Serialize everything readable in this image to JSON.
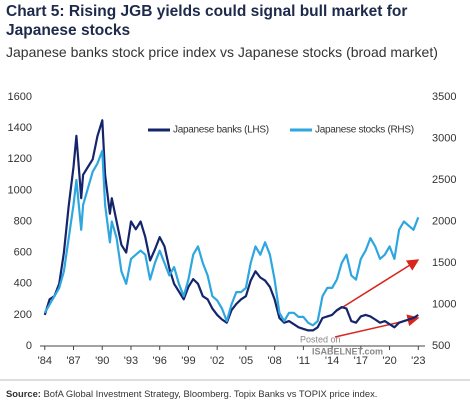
{
  "chart_data": {
    "type": "line",
    "title": "Chart 5: Rising JGB yields could signal bull market for Japanese stocks",
    "subtitle": "Japanese banks stock price index vs Japanese stocks (broad market)",
    "source_label": "Source:",
    "source": "BofA Global Investment Strategy, Bloomberg. Topix Banks vs TOPIX price index.",
    "watermark": [
      "Posted on",
      "ISABELNET.com"
    ],
    "x": [
      1984,
      1984.5,
      1985,
      1985.5,
      1986,
      1986.5,
      1987,
      1987.3,
      1987.8,
      1988,
      1988.5,
      1989,
      1989.5,
      1990,
      1990.3,
      1990.8,
      1991,
      1991.5,
      1992,
      1992.5,
      1993,
      1993.5,
      1994,
      1994.5,
      1995,
      1995.5,
      1996,
      1996.5,
      1997,
      1997.5,
      1998,
      1998.5,
      1999,
      1999.5,
      2000,
      2000.5,
      2001,
      2001.5,
      2002,
      2002.5,
      2003,
      2003.5,
      2004,
      2004.5,
      2005,
      2005.5,
      2006,
      2006.5,
      2007,
      2007.5,
      2008,
      2008.5,
      2009,
      2009.5,
      2010,
      2010.5,
      2011,
      2011.5,
      2012,
      2012.5,
      2013,
      2013.5,
      2014,
      2014.5,
      2015,
      2015.5,
      2016,
      2016.5,
      2017,
      2017.5,
      2018,
      2018.5,
      2019,
      2019.5,
      2020,
      2020.5,
      2021,
      2021.5,
      2022,
      2022.5,
      2023
    ],
    "series": [
      {
        "name": "Japanese banks (LHS)",
        "color": "#15256b",
        "axis": "y",
        "values": [
          200,
          300,
          320,
          400,
          600,
          900,
          1150,
          1350,
          950,
          1100,
          1150,
          1200,
          1350,
          1450,
          1100,
          850,
          950,
          800,
          650,
          600,
          800,
          750,
          800,
          700,
          550,
          620,
          700,
          640,
          500,
          400,
          350,
          300,
          380,
          430,
          400,
          320,
          300,
          240,
          200,
          170,
          150,
          230,
          270,
          300,
          320,
          420,
          480,
          440,
          420,
          380,
          300,
          180,
          150,
          160,
          140,
          120,
          110,
          100,
          100,
          120,
          180,
          190,
          200,
          230,
          250,
          240,
          160,
          150,
          190,
          200,
          190,
          170,
          150,
          160,
          140,
          120,
          150,
          160,
          170,
          180,
          200
        ]
      },
      {
        "name": "Japanese stocks (RHS)",
        "color": "#2ea6e0",
        "axis": "y2",
        "values": [
          900,
          1000,
          1100,
          1200,
          1400,
          1800,
          2200,
          2500,
          1900,
          2200,
          2400,
          2600,
          2700,
          2850,
          2200,
          1750,
          2000,
          1800,
          1400,
          1250,
          1550,
          1600,
          1650,
          1600,
          1300,
          1500,
          1650,
          1500,
          1350,
          1450,
          1250,
          1100,
          1300,
          1600,
          1700,
          1500,
          1350,
          1100,
          1050,
          950,
          800,
          1000,
          1150,
          1150,
          1200,
          1500,
          1700,
          1600,
          1750,
          1600,
          1300,
          900,
          800,
          900,
          900,
          850,
          850,
          780,
          750,
          800,
          1100,
          1200,
          1200,
          1300,
          1500,
          1600,
          1350,
          1300,
          1550,
          1650,
          1800,
          1700,
          1550,
          1600,
          1700,
          1550,
          1900,
          2000,
          1950,
          1900,
          2050
        ]
      }
    ],
    "xlim": [
      1983.5,
      2023.7
    ],
    "xticks": [
      {
        "value": 1984,
        "label": "'84"
      },
      {
        "value": 1987,
        "label": "'87"
      },
      {
        "value": 1990,
        "label": "'90"
      },
      {
        "value": 1993,
        "label": "'93"
      },
      {
        "value": 1996,
        "label": "'96"
      },
      {
        "value": 1999,
        "label": "'99"
      },
      {
        "value": 2002,
        "label": "'02"
      },
      {
        "value": 2005,
        "label": "'05"
      },
      {
        "value": 2008,
        "label": "'08"
      },
      {
        "value": 2011,
        "label": "'11"
      },
      {
        "value": 2014,
        "label": "'14"
      },
      {
        "value": 2017,
        "label": "'17"
      },
      {
        "value": 2020,
        "label": "'20"
      },
      {
        "value": 2023,
        "label": "'23"
      }
    ],
    "ylim": [
      0,
      1600
    ],
    "yticks": [
      0,
      200,
      400,
      600,
      800,
      1000,
      1200,
      1400,
      1600
    ],
    "y2lim": [
      500,
      3500
    ],
    "y2ticks": [
      500,
      1000,
      1500,
      2000,
      2500,
      3000,
      3500
    ],
    "legend": "top"
  }
}
